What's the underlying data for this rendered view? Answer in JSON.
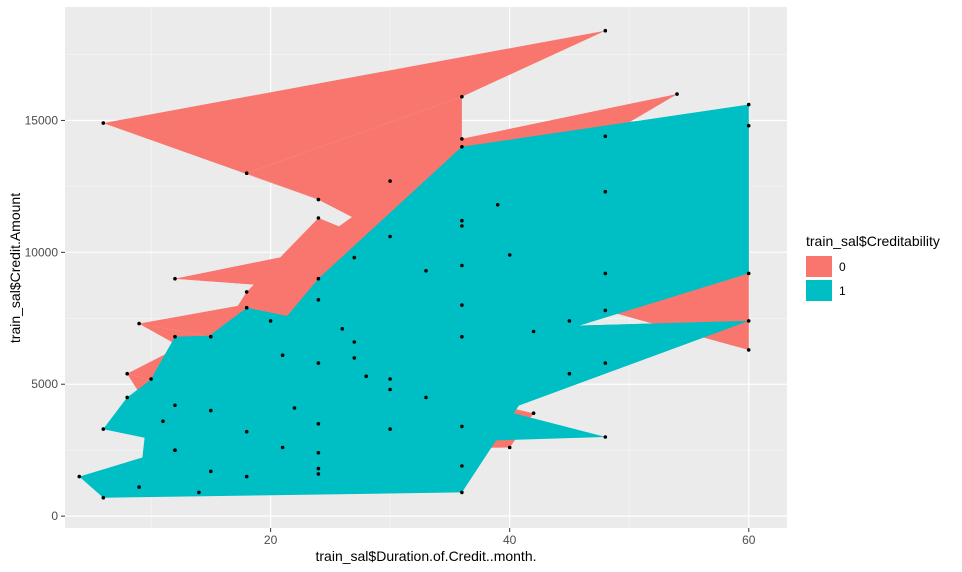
{
  "chart_data": {
    "type": "scatter",
    "xlabel": "train_sal$Duration.of.Credit..month.",
    "ylabel": "train_sal$Credit.Amount",
    "xlim": [
      2.8,
      63.2
    ],
    "ylim": [
      -450,
      19300
    ],
    "x_ticks": [
      20,
      40,
      60
    ],
    "y_ticks": [
      0,
      5000,
      10000,
      15000
    ],
    "x_tick_labels": [
      "20",
      "40",
      "60"
    ],
    "y_tick_labels": [
      "0",
      "5000",
      "10000",
      "15000"
    ],
    "grid": true,
    "legend": {
      "title": "train_sal$Creditability",
      "position": "right",
      "entries": [
        {
          "label": "0",
          "color": "#F8766D"
        },
        {
          "label": "1",
          "color": "#00BFC4"
        }
      ]
    },
    "series": [
      {
        "name": "0",
        "color": "#F8766D",
        "points": [
          [
            6,
            14900
          ],
          [
            48,
            18400
          ],
          [
            36,
            15900
          ],
          [
            18,
            13000
          ],
          [
            24,
            12000
          ],
          [
            30,
            10600
          ],
          [
            36,
            11200
          ],
          [
            12,
            9000
          ],
          [
            48,
            7800
          ],
          [
            60,
            6300
          ],
          [
            60,
            14800
          ],
          [
            39,
            11800
          ],
          [
            36,
            14300
          ],
          [
            54,
            16000
          ],
          [
            48,
            14400
          ],
          [
            24,
            8200
          ],
          [
            18,
            8500
          ],
          [
            12,
            4200
          ],
          [
            36,
            8000
          ],
          [
            45,
            7400
          ],
          [
            24,
            11300
          ],
          [
            27,
            6600
          ],
          [
            36,
            9500
          ],
          [
            48,
            5800
          ],
          [
            30,
            5200
          ],
          [
            15,
            6800
          ],
          [
            9,
            7300
          ],
          [
            24,
            3500
          ],
          [
            21,
            6100
          ],
          [
            33,
            4500
          ],
          [
            42,
            3900
          ],
          [
            40,
            2600
          ],
          [
            12,
            2500
          ],
          [
            18,
            1500
          ],
          [
            24,
            1800
          ],
          [
            36,
            1900
          ],
          [
            8,
            5400
          ],
          [
            27,
            9800
          ],
          [
            30,
            12700
          ],
          [
            26,
            7100
          ]
        ]
      },
      {
        "name": "1",
        "color": "#00BFC4",
        "points": [
          [
            4,
            1500
          ],
          [
            6,
            700
          ],
          [
            36,
            900
          ],
          [
            48,
            9200
          ],
          [
            60,
            9200
          ],
          [
            60,
            15600
          ],
          [
            36,
            14000
          ],
          [
            24,
            9000
          ],
          [
            12,
            2500
          ],
          [
            15,
            4000
          ],
          [
            30,
            4800
          ],
          [
            24,
            5800
          ],
          [
            48,
            3000
          ],
          [
            36,
            3400
          ],
          [
            60,
            7400
          ],
          [
            12,
            6800
          ],
          [
            10,
            5200
          ],
          [
            18,
            3200
          ],
          [
            27,
            6000
          ],
          [
            21,
            2600
          ],
          [
            9,
            1100
          ],
          [
            15,
            1700
          ],
          [
            36,
            11000
          ],
          [
            42,
            7000
          ],
          [
            48,
            12300
          ],
          [
            30,
            3300
          ],
          [
            24,
            1600
          ],
          [
            6,
            3300
          ],
          [
            8,
            4500
          ],
          [
            20,
            7400
          ],
          [
            33,
            9300
          ],
          [
            45,
            5400
          ],
          [
            18,
            7900
          ],
          [
            28,
            5300
          ],
          [
            36,
            6800
          ],
          [
            40,
            9900
          ],
          [
            24,
            2400
          ],
          [
            14,
            900
          ],
          [
            11,
            3600
          ],
          [
            22,
            4100
          ]
        ]
      }
    ],
    "point_color": "#000000"
  }
}
